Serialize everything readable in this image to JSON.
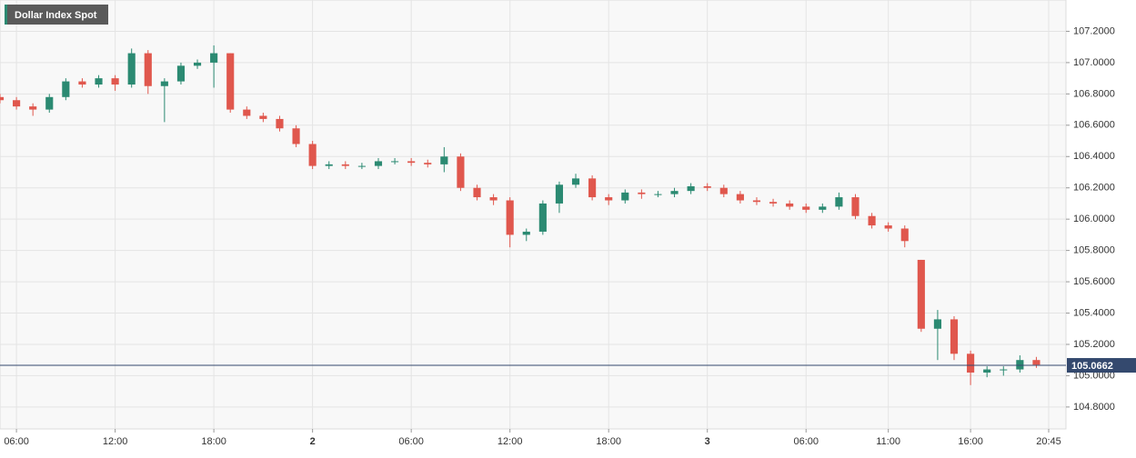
{
  "chart_data": {
    "type": "candlestick",
    "title": "Dollar Index Spot",
    "x": [
      -1,
      0,
      1,
      2,
      3,
      4,
      5,
      6,
      7,
      8,
      9,
      10,
      11,
      12,
      13,
      14,
      15,
      16,
      17,
      18,
      19,
      20,
      21,
      22,
      23,
      24,
      25,
      26,
      27,
      28,
      29,
      30,
      31,
      32,
      33,
      34,
      35,
      36,
      37,
      38,
      39,
      40,
      41,
      42,
      43,
      44,
      45,
      46,
      47,
      48,
      49,
      50,
      51,
      52,
      53,
      54,
      55,
      56,
      57,
      58,
      59,
      60,
      61,
      62
    ],
    "open": [
      106.78,
      106.76,
      106.72,
      106.7,
      106.78,
      106.88,
      106.86,
      106.9,
      106.86,
      107.06,
      106.85,
      106.88,
      106.98,
      107.0,
      107.06,
      106.7,
      106.66,
      106.64,
      106.58,
      106.48,
      106.34,
      106.35,
      106.34,
      106.34,
      106.37,
      106.37,
      106.36,
      106.35,
      106.4,
      106.2,
      106.14,
      106.12,
      105.9,
      105.92,
      106.1,
      106.22,
      106.26,
      106.14,
      106.12,
      106.17,
      106.16,
      106.16,
      106.18,
      106.21,
      106.2,
      106.16,
      106.12,
      106.11,
      106.1,
      106.08,
      106.06,
      106.08,
      106.14,
      106.02,
      105.96,
      105.94,
      105.74,
      105.3,
      105.36,
      105.14,
      105.02,
      105.04,
      105.04,
      105.1
    ],
    "high": [
      106.8,
      106.78,
      106.74,
      106.8,
      106.9,
      106.9,
      106.92,
      106.92,
      107.09,
      107.08,
      106.9,
      107.0,
      107.02,
      107.11,
      107.06,
      106.72,
      106.68,
      106.66,
      106.6,
      106.5,
      106.37,
      106.37,
      106.36,
      106.39,
      106.39,
      106.39,
      106.38,
      106.46,
      106.42,
      106.22,
      106.16,
      106.14,
      105.94,
      106.12,
      106.24,
      106.29,
      106.28,
      106.16,
      106.19,
      106.19,
      106.18,
      106.2,
      106.23,
      106.23,
      106.22,
      106.18,
      106.14,
      106.13,
      106.12,
      106.1,
      106.1,
      106.17,
      106.16,
      106.04,
      105.98,
      105.96,
      105.74,
      105.42,
      105.38,
      105.16,
      105.06,
      105.06,
      105.13,
      105.12
    ],
    "low": [
      106.74,
      106.7,
      106.66,
      106.68,
      106.76,
      106.84,
      106.84,
      106.82,
      106.84,
      106.8,
      106.62,
      106.86,
      106.96,
      106.84,
      106.68,
      106.64,
      106.62,
      106.56,
      106.46,
      106.32,
      106.32,
      106.32,
      106.32,
      106.32,
      106.35,
      106.34,
      106.33,
      106.3,
      106.18,
      106.12,
      106.09,
      105.82,
      105.86,
      105.9,
      106.04,
      106.2,
      106.12,
      106.09,
      106.1,
      106.13,
      106.14,
      106.14,
      106.16,
      106.18,
      106.14,
      106.1,
      106.09,
      106.08,
      106.06,
      106.04,
      106.04,
      106.06,
      106.0,
      105.94,
      105.92,
      105.82,
      105.28,
      105.1,
      105.1,
      104.94,
      104.99,
      105.0,
      105.02,
      105.05
    ],
    "close": [
      106.76,
      106.72,
      106.7,
      106.78,
      106.88,
      106.86,
      106.9,
      106.86,
      107.06,
      106.85,
      106.88,
      106.98,
      107.0,
      107.06,
      106.7,
      106.66,
      106.64,
      106.58,
      106.48,
      106.34,
      106.35,
      106.34,
      106.34,
      106.37,
      106.37,
      106.36,
      106.35,
      106.4,
      106.2,
      106.14,
      106.12,
      105.9,
      105.92,
      106.1,
      106.22,
      106.26,
      106.14,
      106.12,
      106.17,
      106.16,
      106.16,
      106.18,
      106.21,
      106.2,
      106.16,
      106.12,
      106.11,
      106.1,
      106.08,
      106.06,
      106.08,
      106.14,
      106.02,
      105.96,
      105.94,
      105.86,
      105.3,
      105.36,
      105.14,
      105.02,
      105.04,
      105.04,
      105.1,
      105.07
    ],
    "up_color": "#2b8a72",
    "down_color": "#e0574d",
    "last_price": 105.0662,
    "last_color": "#34496e",
    "xlim": [
      -1,
      63.8
    ],
    "ylim": [
      104.66,
      107.4
    ],
    "xticks": [
      {
        "value": 0,
        "label": "06:00"
      },
      {
        "value": 6,
        "label": "12:00"
      },
      {
        "value": 12,
        "label": "18:00"
      },
      {
        "value": 18,
        "label": "2"
      },
      {
        "value": 24,
        "label": "06:00"
      },
      {
        "value": 30,
        "label": "12:00"
      },
      {
        "value": 36,
        "label": "18:00"
      },
      {
        "value": 42,
        "label": "3"
      },
      {
        "value": 48,
        "label": "06:00"
      },
      {
        "value": 53,
        "label": "11:00"
      },
      {
        "value": 58,
        "label": "16:00"
      },
      {
        "value": 62.75,
        "label": "20:45"
      }
    ],
    "yticks": [
      {
        "value": 104.8,
        "label": "104.8000"
      },
      {
        "value": 105,
        "label": "105.0000"
      },
      {
        "value": 105.2,
        "label": "105.2000"
      },
      {
        "value": 105.4,
        "label": "105.4000"
      },
      {
        "value": 105.6,
        "label": "105.6000"
      },
      {
        "value": 105.8,
        "label": "105.8000"
      },
      {
        "value": 106,
        "label": "106.0000"
      },
      {
        "value": 106.2,
        "label": "106.2000"
      },
      {
        "value": 106.4,
        "label": "106.4000"
      },
      {
        "value": 106.6,
        "label": "106.6000"
      },
      {
        "value": 106.8,
        "label": "106.8000"
      },
      {
        "value": 107,
        "label": "107.0000"
      },
      {
        "value": 107.2,
        "label": "107.2000"
      }
    ],
    "grid": true
  }
}
